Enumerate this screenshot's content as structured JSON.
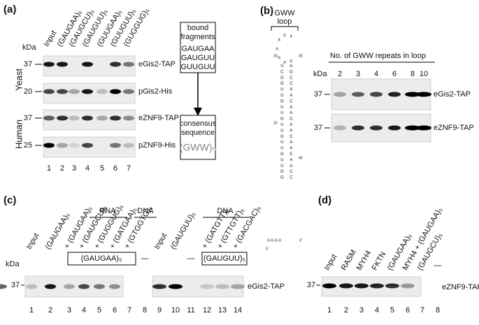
{
  "panel_a": {
    "label": "(a)",
    "kda": "kDa",
    "lanes": [
      "Input",
      "(GAUGAA)₅",
      "(GAUGCU)₅",
      "(GAUGUU)₅",
      "(GUUGAA)₅",
      "(GUUGUU)₅",
      "(GUGGUG)₅"
    ],
    "lane_numbers": [
      "1",
      "2",
      "3",
      "4",
      "5",
      "6",
      "7"
    ],
    "groups": [
      "Yeast",
      "Human"
    ],
    "rows": [
      {
        "marker": "37",
        "protein": "eGis2-TAP"
      },
      {
        "marker": "20",
        "protein": "pGis2-His"
      },
      {
        "marker": "37",
        "protein": "eZNF9-TAP"
      },
      {
        "marker": "25",
        "protein": "pZNF9-His"
      }
    ],
    "flow": {
      "top": [
        "bound",
        "fragments"
      ],
      "fragments": [
        "GAUGAA",
        "GAUGUU",
        "GUUGUU"
      ],
      "bottom": [
        "consensus",
        "sequence"
      ],
      "consensus": "(GWW)ₙ"
    }
  },
  "panel_b": {
    "label": "(b)",
    "loop_label": [
      "GWW",
      "loop"
    ],
    "loop": [
      "G",
      "A",
      "G",
      "A",
      "A",
      "G",
      "A"
    ],
    "stem_left": "UCGGUUGUUGUUGUUGUUGG",
    "stem_right": "AGCCAACAACAACAACAACC",
    "tail": "G-G-G-U",
    "positions": [
      "20",
      "30",
      "10",
      "40"
    ],
    "ends": [
      "5'",
      "3'"
    ],
    "header": "No. of GWW repeats in loop",
    "kda": "kDa",
    "repeats": [
      "2",
      "3",
      "4",
      "6",
      "8",
      "10"
    ],
    "rows": [
      {
        "marker": "37",
        "protein": "eGis2-TAP"
      },
      {
        "marker": "37",
        "protein": "eZNF9-TAP"
      }
    ]
  },
  "panel_c": {
    "label": "(c)",
    "kda": "kDa",
    "marker": "37",
    "protein": "eGis2-TAP",
    "lanes_left": [
      "Input",
      "(GAUGAA)₅",
      "+ (GAUGAA)₅",
      "+ (GAUGCU)₅",
      "+ (GUGGUG)₅",
      "+ (GATGAA)₅",
      "+ (GTGGTG)₅"
    ],
    "lanes_right": [
      "Input",
      "(GAUGUU)₅",
      "+ (GATGTT)₅",
      "+ (GTTGTT)₅",
      "+ (GACGAC)₅"
    ],
    "rna": "RNA",
    "dna_left": "DNA",
    "dna_right": "DNA",
    "box_left": "(GAUGAA)₅",
    "box_right": "(GAUGUU)₅",
    "none_left": "—",
    "none_right": "—",
    "lane_numbers": [
      "1",
      "2",
      "3",
      "4",
      "5",
      "6",
      "7",
      "8",
      "9",
      "10",
      "11",
      "12",
      "13",
      "14"
    ]
  },
  "panel_d": {
    "label": "(d)",
    "marker": "37",
    "protein": "eZNF9-TAP",
    "lanes": [
      "Input",
      "RASM",
      "MYH4",
      "FKTN",
      "(GAUGAA)₅",
      "MYH4 + (GAUGAA)₅",
      "(GAUGCU)₅"
    ],
    "none": "—",
    "lane_numbers": [
      "1",
      "2",
      "3",
      "4",
      "5",
      "6",
      "7",
      "8"
    ]
  }
}
